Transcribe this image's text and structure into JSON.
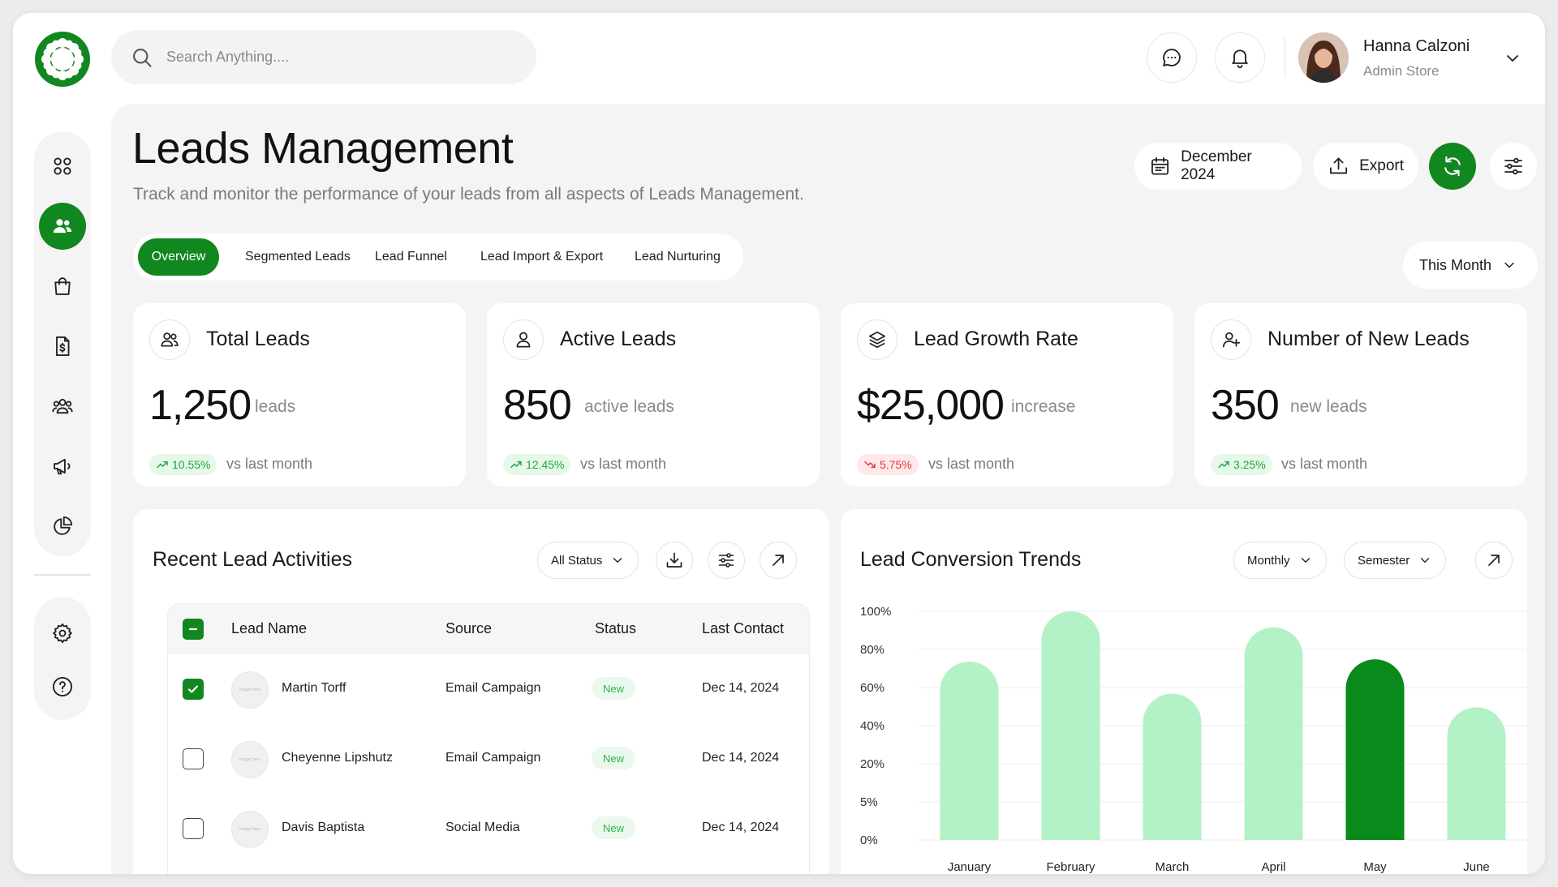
{
  "search": {
    "placeholder": "Search Anything...."
  },
  "user": {
    "name": "Hanna Calzoni",
    "role": "Admin Store"
  },
  "page": {
    "title": "Leads Management",
    "subtitle": "Track and monitor the performance of your leads from all aspects of Leads Management."
  },
  "actions": {
    "date_label": "December 2024",
    "export_label": "Export"
  },
  "tabs": [
    {
      "label": "Overview",
      "active": true
    },
    {
      "label": "Segmented Leads",
      "active": false
    },
    {
      "label": "Lead Funnel",
      "active": false
    },
    {
      "label": "Lead Import & Export",
      "active": false
    },
    {
      "label": "Lead Nurturing",
      "active": false
    }
  ],
  "period": {
    "label": "This Month"
  },
  "stats": [
    {
      "title": "Total Leads",
      "value": "1,250",
      "unit": "leads",
      "change": "10.55%",
      "trend": "up",
      "vs": "vs last month",
      "icon": "users-icon"
    },
    {
      "title": "Active Leads",
      "value": "850",
      "unit": "active leads",
      "change": "12.45%",
      "trend": "up",
      "vs": "vs last month",
      "icon": "user-icon"
    },
    {
      "title": "Lead Growth Rate",
      "value": "$25,000",
      "unit": "increase",
      "change": "5.75%",
      "trend": "down",
      "vs": "vs last month",
      "icon": "layers-icon"
    },
    {
      "title": "Number of New Leads",
      "value": "350",
      "unit": "new leads",
      "change": "3.25%",
      "trend": "up",
      "vs": "vs last month",
      "icon": "user-plus-icon"
    }
  ],
  "activities": {
    "title": "Recent Lead Activities",
    "filter_label": "All Status",
    "columns": [
      "Lead Name",
      "Source",
      "Status",
      "Last Contact"
    ],
    "avatar_placeholder": "Image Here",
    "rows": [
      {
        "name": "Martin Torff",
        "source": "Email Campaign",
        "status": "New",
        "last_contact": "Dec 14, 2024",
        "checked": true
      },
      {
        "name": "Cheyenne Lipshutz",
        "source": "Email Campaign",
        "status": "New",
        "last_contact": "Dec 14, 2024",
        "checked": false
      },
      {
        "name": "Davis Baptista",
        "source": "Social Media",
        "status": "New",
        "last_contact": "Dec 14, 2024",
        "checked": false
      }
    ]
  },
  "trends": {
    "title": "Lead Conversion Trends",
    "filter1_label": "Monthly",
    "filter2_label": "Semester"
  },
  "colors": {
    "accent": "#11871f",
    "bar_light": "#b3f2c6",
    "bar_highlight": "#0a8a1a"
  },
  "chart_data": {
    "type": "bar",
    "categories": [
      "January",
      "February",
      "March",
      "April",
      "May",
      "June"
    ],
    "values": [
      78,
      100,
      64,
      93,
      79,
      58
    ],
    "highlight": "May",
    "y_tick_labels": [
      "100%",
      "80%",
      "60%",
      "40%",
      "20%",
      "5%",
      "0%"
    ],
    "ylim": [
      0,
      100
    ],
    "grid": true
  }
}
